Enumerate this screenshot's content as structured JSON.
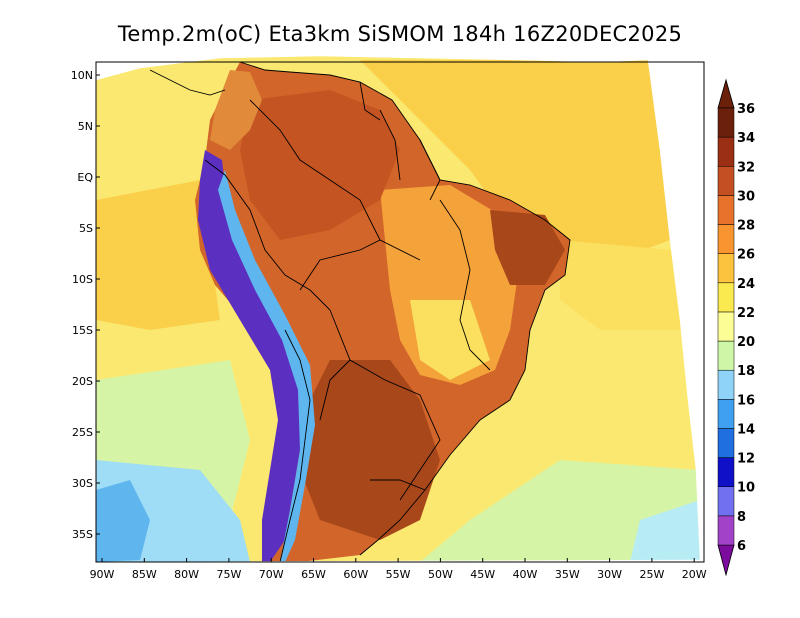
{
  "title": "Temp.2m(oC) Eta3km SiSMOM 184h 16Z20DEC2025",
  "lat_labels": [
    "10N",
    "5N",
    "EQ",
    "5S",
    "10S",
    "15S",
    "20S",
    "25S",
    "30S",
    "35S"
  ],
  "lon_labels": [
    "90W",
    "85W",
    "80W",
    "75W",
    "70W",
    "65W",
    "60W",
    "55W",
    "50W",
    "45W",
    "40W",
    "35W",
    "30W",
    "25W",
    "20W"
  ],
  "colorbar": {
    "labels": [
      "6",
      "8",
      "10",
      "12",
      "14",
      "16",
      "18",
      "20",
      "22",
      "24",
      "26",
      "28",
      "30",
      "32",
      "34",
      "36"
    ],
    "colors": [
      "#7b0c9e",
      "#a242c8",
      "#7070f0",
      "#1010c8",
      "#1f6fe0",
      "#3f9ff0",
      "#8fd3f8",
      "#cdf7a6",
      "#fdfd96",
      "#fae94f",
      "#fcc33e",
      "#f99531",
      "#e8722c",
      "#c44f22",
      "#9a2f14",
      "#6b200c"
    ]
  },
  "legend_colors": {
    "ocean_warm": "#fad04a",
    "ocean_mid": "#fbe870",
    "ocean_cool": "#d6f4a6",
    "ocean_cold": "#9fdcf5",
    "land_hot": "#d2652a",
    "land_hotter": "#a8471a",
    "andes": "#5b2fbf"
  }
}
